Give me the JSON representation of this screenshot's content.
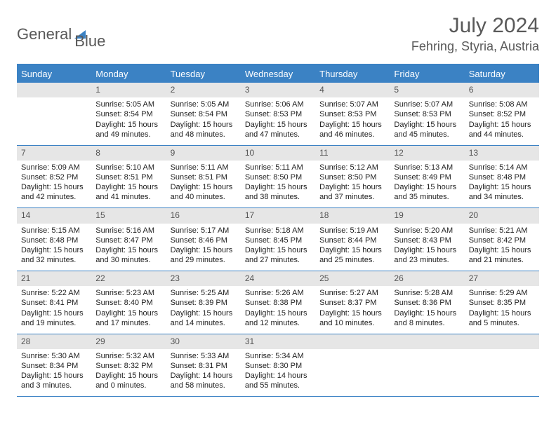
{
  "logo": {
    "text1": "General",
    "text2": "Blue"
  },
  "title": "July 2024",
  "location": "Fehring, Styria, Austria",
  "colors": {
    "header_bg": "#3b82c4",
    "header_text": "#ffffff",
    "daynum_bg": "#e6e6e6",
    "daynum_text": "#555555",
    "body_text": "#222222",
    "title_text": "#595959"
  },
  "weekdays": [
    "Sunday",
    "Monday",
    "Tuesday",
    "Wednesday",
    "Thursday",
    "Friday",
    "Saturday"
  ],
  "weeks": [
    [
      null,
      {
        "n": "1",
        "sr": "Sunrise: 5:05 AM",
        "ss": "Sunset: 8:54 PM",
        "d1": "Daylight: 15 hours",
        "d2": "and 49 minutes."
      },
      {
        "n": "2",
        "sr": "Sunrise: 5:05 AM",
        "ss": "Sunset: 8:54 PM",
        "d1": "Daylight: 15 hours",
        "d2": "and 48 minutes."
      },
      {
        "n": "3",
        "sr": "Sunrise: 5:06 AM",
        "ss": "Sunset: 8:53 PM",
        "d1": "Daylight: 15 hours",
        "d2": "and 47 minutes."
      },
      {
        "n": "4",
        "sr": "Sunrise: 5:07 AM",
        "ss": "Sunset: 8:53 PM",
        "d1": "Daylight: 15 hours",
        "d2": "and 46 minutes."
      },
      {
        "n": "5",
        "sr": "Sunrise: 5:07 AM",
        "ss": "Sunset: 8:53 PM",
        "d1": "Daylight: 15 hours",
        "d2": "and 45 minutes."
      },
      {
        "n": "6",
        "sr": "Sunrise: 5:08 AM",
        "ss": "Sunset: 8:52 PM",
        "d1": "Daylight: 15 hours",
        "d2": "and 44 minutes."
      }
    ],
    [
      {
        "n": "7",
        "sr": "Sunrise: 5:09 AM",
        "ss": "Sunset: 8:52 PM",
        "d1": "Daylight: 15 hours",
        "d2": "and 42 minutes."
      },
      {
        "n": "8",
        "sr": "Sunrise: 5:10 AM",
        "ss": "Sunset: 8:51 PM",
        "d1": "Daylight: 15 hours",
        "d2": "and 41 minutes."
      },
      {
        "n": "9",
        "sr": "Sunrise: 5:11 AM",
        "ss": "Sunset: 8:51 PM",
        "d1": "Daylight: 15 hours",
        "d2": "and 40 minutes."
      },
      {
        "n": "10",
        "sr": "Sunrise: 5:11 AM",
        "ss": "Sunset: 8:50 PM",
        "d1": "Daylight: 15 hours",
        "d2": "and 38 minutes."
      },
      {
        "n": "11",
        "sr": "Sunrise: 5:12 AM",
        "ss": "Sunset: 8:50 PM",
        "d1": "Daylight: 15 hours",
        "d2": "and 37 minutes."
      },
      {
        "n": "12",
        "sr": "Sunrise: 5:13 AM",
        "ss": "Sunset: 8:49 PM",
        "d1": "Daylight: 15 hours",
        "d2": "and 35 minutes."
      },
      {
        "n": "13",
        "sr": "Sunrise: 5:14 AM",
        "ss": "Sunset: 8:48 PM",
        "d1": "Daylight: 15 hours",
        "d2": "and 34 minutes."
      }
    ],
    [
      {
        "n": "14",
        "sr": "Sunrise: 5:15 AM",
        "ss": "Sunset: 8:48 PM",
        "d1": "Daylight: 15 hours",
        "d2": "and 32 minutes."
      },
      {
        "n": "15",
        "sr": "Sunrise: 5:16 AM",
        "ss": "Sunset: 8:47 PM",
        "d1": "Daylight: 15 hours",
        "d2": "and 30 minutes."
      },
      {
        "n": "16",
        "sr": "Sunrise: 5:17 AM",
        "ss": "Sunset: 8:46 PM",
        "d1": "Daylight: 15 hours",
        "d2": "and 29 minutes."
      },
      {
        "n": "17",
        "sr": "Sunrise: 5:18 AM",
        "ss": "Sunset: 8:45 PM",
        "d1": "Daylight: 15 hours",
        "d2": "and 27 minutes."
      },
      {
        "n": "18",
        "sr": "Sunrise: 5:19 AM",
        "ss": "Sunset: 8:44 PM",
        "d1": "Daylight: 15 hours",
        "d2": "and 25 minutes."
      },
      {
        "n": "19",
        "sr": "Sunrise: 5:20 AM",
        "ss": "Sunset: 8:43 PM",
        "d1": "Daylight: 15 hours",
        "d2": "and 23 minutes."
      },
      {
        "n": "20",
        "sr": "Sunrise: 5:21 AM",
        "ss": "Sunset: 8:42 PM",
        "d1": "Daylight: 15 hours",
        "d2": "and 21 minutes."
      }
    ],
    [
      {
        "n": "21",
        "sr": "Sunrise: 5:22 AM",
        "ss": "Sunset: 8:41 PM",
        "d1": "Daylight: 15 hours",
        "d2": "and 19 minutes."
      },
      {
        "n": "22",
        "sr": "Sunrise: 5:23 AM",
        "ss": "Sunset: 8:40 PM",
        "d1": "Daylight: 15 hours",
        "d2": "and 17 minutes."
      },
      {
        "n": "23",
        "sr": "Sunrise: 5:25 AM",
        "ss": "Sunset: 8:39 PM",
        "d1": "Daylight: 15 hours",
        "d2": "and 14 minutes."
      },
      {
        "n": "24",
        "sr": "Sunrise: 5:26 AM",
        "ss": "Sunset: 8:38 PM",
        "d1": "Daylight: 15 hours",
        "d2": "and 12 minutes."
      },
      {
        "n": "25",
        "sr": "Sunrise: 5:27 AM",
        "ss": "Sunset: 8:37 PM",
        "d1": "Daylight: 15 hours",
        "d2": "and 10 minutes."
      },
      {
        "n": "26",
        "sr": "Sunrise: 5:28 AM",
        "ss": "Sunset: 8:36 PM",
        "d1": "Daylight: 15 hours",
        "d2": "and 8 minutes."
      },
      {
        "n": "27",
        "sr": "Sunrise: 5:29 AM",
        "ss": "Sunset: 8:35 PM",
        "d1": "Daylight: 15 hours",
        "d2": "and 5 minutes."
      }
    ],
    [
      {
        "n": "28",
        "sr": "Sunrise: 5:30 AM",
        "ss": "Sunset: 8:34 PM",
        "d1": "Daylight: 15 hours",
        "d2": "and 3 minutes."
      },
      {
        "n": "29",
        "sr": "Sunrise: 5:32 AM",
        "ss": "Sunset: 8:32 PM",
        "d1": "Daylight: 15 hours",
        "d2": "and 0 minutes."
      },
      {
        "n": "30",
        "sr": "Sunrise: 5:33 AM",
        "ss": "Sunset: 8:31 PM",
        "d1": "Daylight: 14 hours",
        "d2": "and 58 minutes."
      },
      {
        "n": "31",
        "sr": "Sunrise: 5:34 AM",
        "ss": "Sunset: 8:30 PM",
        "d1": "Daylight: 14 hours",
        "d2": "and 55 minutes."
      },
      null,
      null,
      null
    ]
  ]
}
